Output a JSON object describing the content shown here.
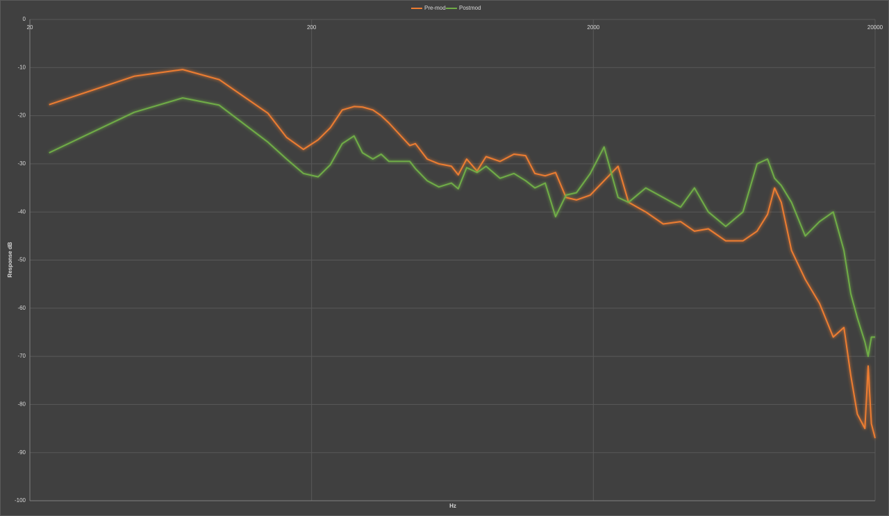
{
  "chart_data": {
    "type": "line",
    "x_label": "Hz",
    "y_label": "Response dB",
    "xscale": "log",
    "grid": true,
    "legend": "top",
    "xlim": [
      20,
      20000
    ],
    "xticks": [
      20,
      200,
      2000,
      20000
    ],
    "ylim": [
      -100,
      0
    ],
    "yticks": [
      -100,
      -90,
      -80,
      -70,
      -60,
      -50,
      -40,
      -30,
      -20,
      -10,
      0
    ],
    "x": [
      23.4,
      46.9,
      69.7,
      94,
      140,
      163,
      187,
      211,
      233,
      257,
      283,
      303,
      330,
      353,
      376,
      446,
      467,
      514,
      566,
      627,
      663,
      710,
      773,
      832,
      933,
      1045,
      1150,
      1240,
      1349,
      1468,
      1600,
      1742,
      1950,
      2184,
      2448,
      2667,
      3070,
      3540,
      4080,
      4570,
      5120,
      5900,
      6790,
      7620,
      8300,
      8790,
      9290,
      10100,
      11300,
      12700,
      14200,
      15500,
      16400,
      17300,
      18400,
      18900,
      19400,
      20000
    ],
    "series": [
      {
        "name": "Pre-mod",
        "color": "#ed7d31",
        "values": [
          -17.7,
          -11.8,
          -10.4,
          -12.5,
          -19.5,
          -24.5,
          -27,
          -25,
          -22.5,
          -18.8,
          -18.1,
          -18.2,
          -18.8,
          -20,
          -21.5,
          -26.2,
          -25.8,
          -29,
          -30,
          -30.5,
          -32.3,
          -29,
          -31.5,
          -28.5,
          -29.5,
          -28,
          -28.3,
          -32,
          -32.5,
          -31.8,
          -37,
          -37.5,
          -36.5,
          -33.5,
          -30.5,
          -38,
          -40,
          -42.5,
          -42,
          -44,
          -43.5,
          -46,
          -46,
          -44,
          -40.5,
          -35,
          -38,
          -48,
          -54,
          -59,
          -66,
          -64,
          -74,
          -82,
          -85,
          -72,
          -84,
          -87
        ]
      },
      {
        "name": "Postmod",
        "color": "#70ad47",
        "values": [
          -27.7,
          -19.3,
          -16.3,
          -17.8,
          -25.5,
          -29,
          -32,
          -32.7,
          -30.2,
          -25.8,
          -24.2,
          -27.7,
          -29,
          -28,
          -29.5,
          -29.5,
          -31,
          -33.5,
          -34.8,
          -34,
          -35.2,
          -30.8,
          -31.8,
          -30.5,
          -33,
          -32,
          -33.5,
          -35,
          -34,
          -41,
          -36.5,
          -36,
          -32,
          -26.5,
          -37,
          -38,
          -35,
          -37,
          -39,
          -35,
          -40,
          -43,
          -40,
          -30,
          -29,
          -33,
          -34.5,
          -38,
          -45,
          -42,
          -40,
          -48,
          -57,
          -62,
          -67,
          -70,
          -66,
          -66
        ]
      }
    ]
  }
}
